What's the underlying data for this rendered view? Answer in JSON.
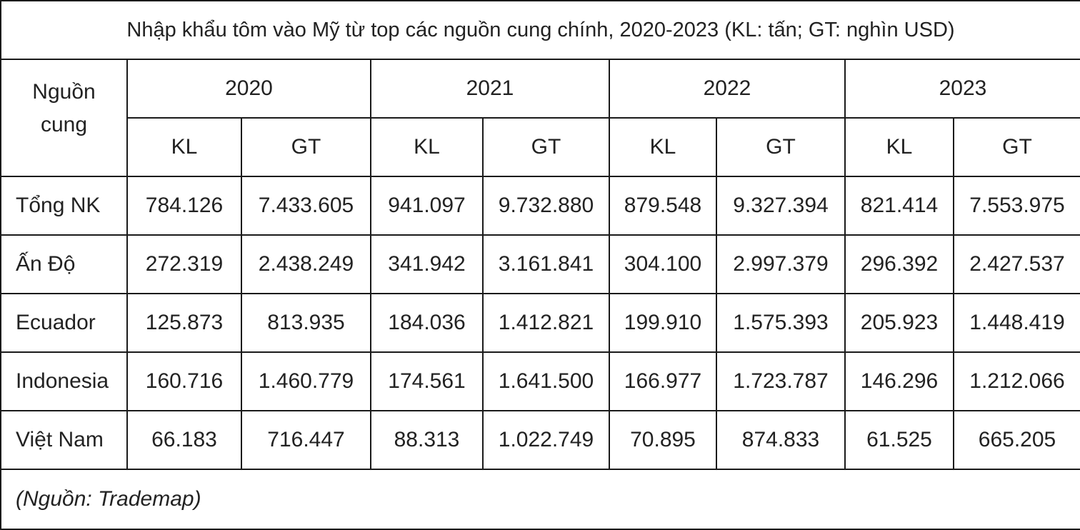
{
  "title": "Nhập khẩu tôm vào Mỹ từ top các nguồn cung chính, 2020-2023 (KL: tấn; GT: nghìn USD)",
  "header": {
    "source_label_line1": "Nguồn",
    "source_label_line2": "cung",
    "years": [
      "2020",
      "2021",
      "2022",
      "2023"
    ],
    "sub": [
      "KL",
      "GT",
      "KL",
      "GT",
      "KL",
      "GT",
      "KL",
      "GT"
    ]
  },
  "rows": [
    {
      "name": "Tổng NK",
      "values": [
        "784.126",
        "7.433.605",
        "941.097",
        "9.732.880",
        "879.548",
        "9.327.394",
        "821.414",
        "7.553.975"
      ]
    },
    {
      "name": "Ấn Độ",
      "values": [
        "272.319",
        "2.438.249",
        "341.942",
        "3.161.841",
        "304.100",
        "2.997.379",
        "296.392",
        "2.427.537"
      ]
    },
    {
      "name": "Ecuador",
      "values": [
        "125.873",
        "813.935",
        "184.036",
        "1.412.821",
        "199.910",
        "1.575.393",
        "205.923",
        "1.448.419"
      ]
    },
    {
      "name": "Indonesia",
      "values": [
        "160.716",
        "1.460.779",
        "174.561",
        "1.641.500",
        "166.977",
        "1.723.787",
        "146.296",
        "1.212.066"
      ]
    },
    {
      "name": "Việt Nam",
      "values": [
        "66.183",
        "716.447",
        "88.313",
        "1.022.749",
        "70.895",
        "874.833",
        "61.525",
        "665.205"
      ]
    }
  ],
  "note": "(Nguồn: Trademap)"
}
